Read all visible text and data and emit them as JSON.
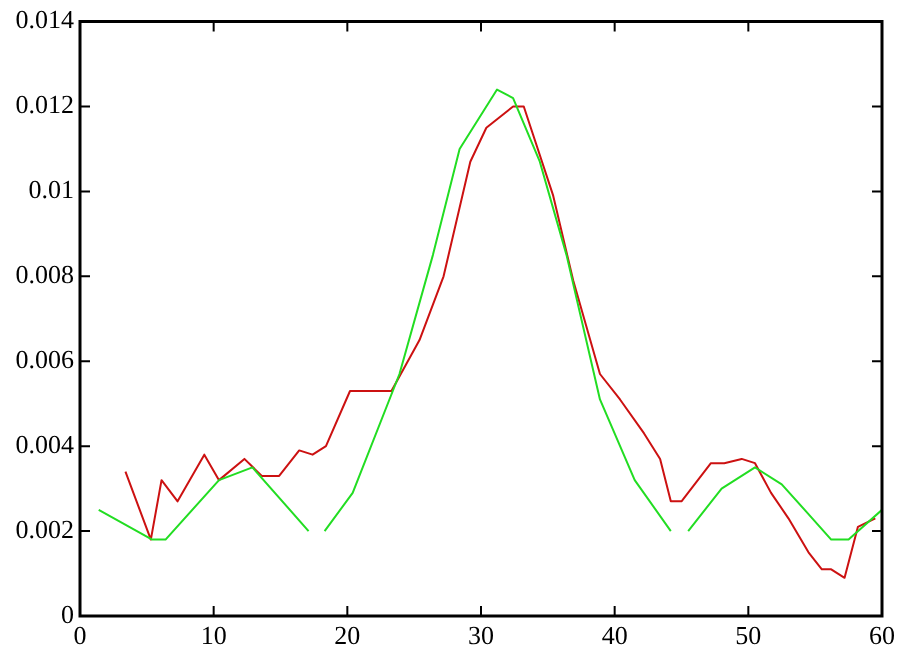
{
  "chart_data": {
    "type": "line",
    "xlim": [
      0,
      60
    ],
    "ylim": [
      0,
      0.014
    ],
    "xticks": [
      0,
      10,
      20,
      30,
      40,
      50,
      60
    ],
    "yticks": [
      0,
      0.002,
      0.004,
      0.006,
      0.008,
      0.01,
      0.012,
      0.014
    ],
    "marker": "none",
    "line_style": "solid",
    "legend": false,
    "grid": false,
    "series": [
      {
        "color": "#22dd22",
        "x": [
          1.4,
          5.4,
          6.4,
          10.4,
          12.9,
          17.1,
          17.7,
          18.3,
          20.4,
          23.9,
          26.4,
          28.4,
          31.2,
          32.4,
          34.4,
          36.4,
          38.9,
          41.5,
          44.2,
          44.8,
          45.5,
          48.0,
          50.5,
          52.5,
          54.5,
          56.2,
          57.5,
          60
        ],
        "values": [
          0.0025,
          0.0018,
          0.0018,
          0.0032,
          0.0035,
          0.002,
          null,
          0.002,
          0.0029,
          0.0057,
          0.0085,
          0.011,
          0.0124,
          0.0122,
          0.0107,
          0.0085,
          0.0051,
          0.0032,
          0.002,
          null,
          0.002,
          0.003,
          0.0035,
          0.0031,
          0.0024,
          0.0018,
          0.0018,
          0.0025
        ]
      },
      {
        "color": "#cc1111",
        "x": [
          3.4,
          5.3,
          6.1,
          7.3,
          9.3,
          10.4,
          12.3,
          13.6,
          14.9,
          16.4,
          17.4,
          18.4,
          20.2,
          21.9,
          23.3,
          25.4,
          27.2,
          29.2,
          30.4,
          32.4,
          33.2,
          35.4,
          36.9,
          38.9,
          40.4,
          42.2,
          43.4,
          44.2,
          45.0,
          47.2,
          48.2,
          49.5,
          50.5,
          51.7,
          53.0,
          54.5,
          55.5,
          56.2,
          57.2,
          58.2,
          59.5
        ],
        "values": [
          0.0034,
          0.0018,
          0.0032,
          0.0027,
          0.0038,
          0.0032,
          0.0037,
          0.0033,
          0.0033,
          0.0039,
          0.0038,
          0.004,
          0.0053,
          0.0053,
          0.0053,
          0.0065,
          0.008,
          0.0107,
          0.0115,
          0.012,
          0.012,
          0.0099,
          0.0079,
          0.0057,
          0.0051,
          0.0043,
          0.0037,
          0.0027,
          0.0027,
          0.0036,
          0.0036,
          0.0037,
          0.0036,
          0.0029,
          0.0023,
          0.0015,
          0.0011,
          0.0011,
          0.0009,
          0.0021,
          0.0023
        ]
      }
    ]
  }
}
